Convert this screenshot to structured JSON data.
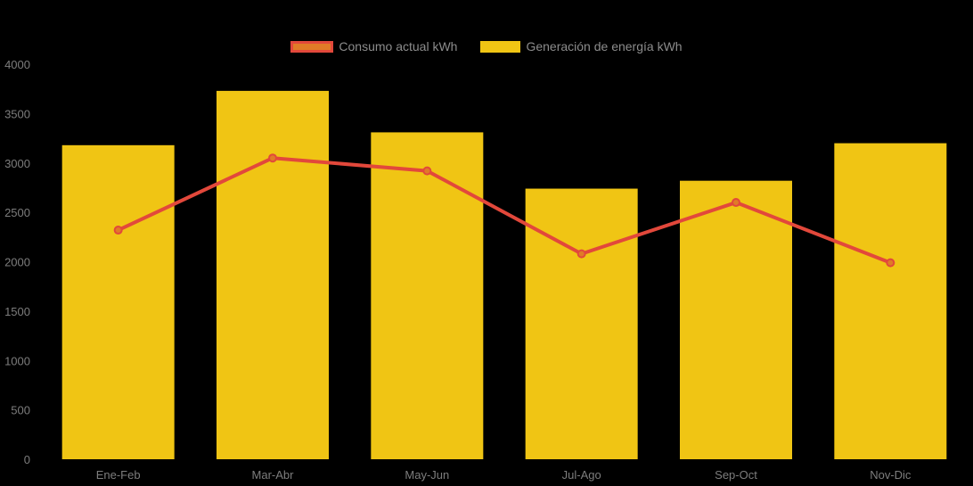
{
  "chart_data": {
    "type": "bar+line",
    "categories": [
      "Ene-Feb",
      "Mar-Abr",
      "May-Jun",
      "Jul-Ago",
      "Sep-Oct",
      "Nov-Dic"
    ],
    "series": [
      {
        "name": "Consumo actual kWh",
        "type": "line",
        "values": [
          2320,
          3050,
          2920,
          2080,
          2600,
          1990
        ],
        "color": "#E2483B",
        "marker_fill": "#E07B27"
      },
      {
        "name": "Generación de energía kWh",
        "type": "bar",
        "values": [
          3180,
          3730,
          3310,
          2740,
          2820,
          3200
        ],
        "color": "#F0C514"
      }
    ],
    "ylim": [
      0,
      4000
    ],
    "yticks": [
      0,
      500,
      1000,
      1500,
      2000,
      2500,
      3000,
      3500,
      4000
    ],
    "xlabel": "",
    "ylabel": "",
    "title": "",
    "grid": false,
    "legend_position": "top-center",
    "background_color": "#000000",
    "axis_text_color": "#7d7d7d",
    "legend_text_color": "#8c8c8c"
  }
}
